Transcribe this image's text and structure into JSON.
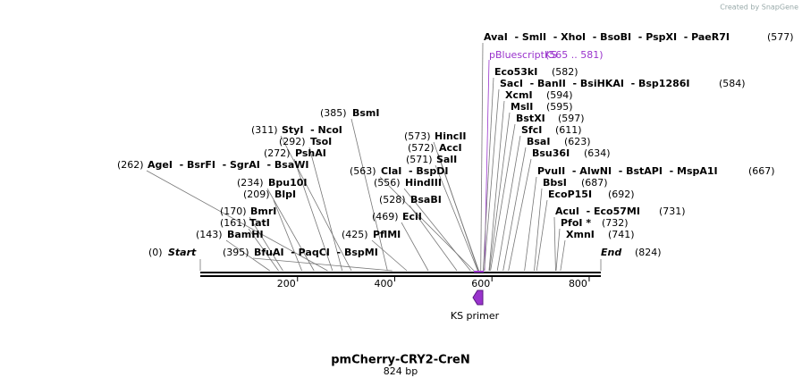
{
  "watermark": "Created by SnapGene",
  "title": "pmCherry-CRY2-CreN",
  "subtitle": "824 bp",
  "map": {
    "start": {
      "name": "Start",
      "site": {
        "value": 0,
        "label": "(0)"
      }
    },
    "end": {
      "name": "End",
      "site": {
        "value": 824,
        "label": "(824)"
      }
    },
    "ticks": [
      200,
      400,
      600,
      800
    ]
  },
  "feature": {
    "name": "pBluescriptKS",
    "range": "(565 .. 581)"
  },
  "primer": {
    "name": "KS primer"
  },
  "enzymes": [
    {
      "names": "AvaI  - SmlI  - XhoI  - BsoBI  - PspXI  - PaeR7I",
      "site": {
        "value": 577,
        "label": "(577)"
      }
    },
    {
      "names": "Eco53kI",
      "site": {
        "value": 582,
        "label": "(582)"
      }
    },
    {
      "names": "SacI  - BanII  - BsiHKAI  - Bsp1286I",
      "site": {
        "value": 584,
        "label": "(584)"
      }
    },
    {
      "names": "XcmI",
      "site": {
        "value": 594,
        "label": "(594)"
      }
    },
    {
      "names": "MslI",
      "site": {
        "value": 595,
        "label": "(595)"
      }
    },
    {
      "names": "BstXI",
      "site": {
        "value": 597,
        "label": "(597)"
      }
    },
    {
      "names": "SfcI",
      "site": {
        "value": 611,
        "label": "(611)"
      }
    },
    {
      "names": "BsaI",
      "site": {
        "value": 623,
        "label": "(623)"
      }
    },
    {
      "names": "Bsu36I",
      "site": {
        "value": 634,
        "label": "(634)"
      }
    },
    {
      "names": "PvuII  - AlwNI  - BstAPI  - MspA1I",
      "site": {
        "value": 667,
        "label": "(667)"
      }
    },
    {
      "names": "BbsI",
      "site": {
        "value": 687,
        "label": "(687)"
      }
    },
    {
      "names": "EcoP15I",
      "site": {
        "value": 692,
        "label": "(692)"
      }
    },
    {
      "names": "AcuI  - Eco57MI",
      "site": {
        "value": 731,
        "label": "(731)"
      }
    },
    {
      "names": "PfoI *",
      "site": {
        "value": 732,
        "label": "(732)"
      }
    },
    {
      "names": "XmnI",
      "site": {
        "value": 741,
        "label": "(741)"
      }
    },
    {
      "names": "BsmI",
      "site": {
        "value": 385,
        "label": "(385)"
      }
    },
    {
      "names": "HincII",
      "site": {
        "value": 573,
        "label": "(573)"
      }
    },
    {
      "names": "AccI",
      "site": {
        "value": 572,
        "label": "(572)"
      }
    },
    {
      "names": "SalI",
      "site": {
        "value": 571,
        "label": "(571)"
      }
    },
    {
      "names": "StyI  - NcoI",
      "site": {
        "value": 311,
        "label": "(311)"
      }
    },
    {
      "names": "TsoI",
      "site": {
        "value": 292,
        "label": "(292)"
      }
    },
    {
      "names": "PshAI",
      "site": {
        "value": 272,
        "label": "(272)"
      }
    },
    {
      "names": "AgeI  - BsrFI  - SgrAI  - BsaWI",
      "site": {
        "value": 262,
        "label": "(262)"
      }
    },
    {
      "names": "ClaI  - BspDI",
      "site": {
        "value": 563,
        "label": "(563)"
      }
    },
    {
      "names": "HindIII",
      "site": {
        "value": 556,
        "label": "(556)"
      }
    },
    {
      "names": "Bpu10I",
      "site": {
        "value": 234,
        "label": "(234)"
      }
    },
    {
      "names": "BlpI",
      "site": {
        "value": 209,
        "label": "(209)"
      }
    },
    {
      "names": "BsaBI",
      "site": {
        "value": 528,
        "label": "(528)"
      }
    },
    {
      "names": "BmrI",
      "site": {
        "value": 170,
        "label": "(170)"
      }
    },
    {
      "names": "EciI",
      "site": {
        "value": 469,
        "label": "(469)"
      }
    },
    {
      "names": "TatI",
      "site": {
        "value": 161,
        "label": "(161)"
      }
    },
    {
      "names": "BamHI",
      "site": {
        "value": 143,
        "label": "(143)"
      }
    },
    {
      "names": "PflMI",
      "site": {
        "value": 425,
        "label": "(425)"
      }
    },
    {
      "names": "BfuAI  - PaqCI  - BspMI",
      "site": {
        "value": 395,
        "label": "(395)"
      }
    }
  ]
}
